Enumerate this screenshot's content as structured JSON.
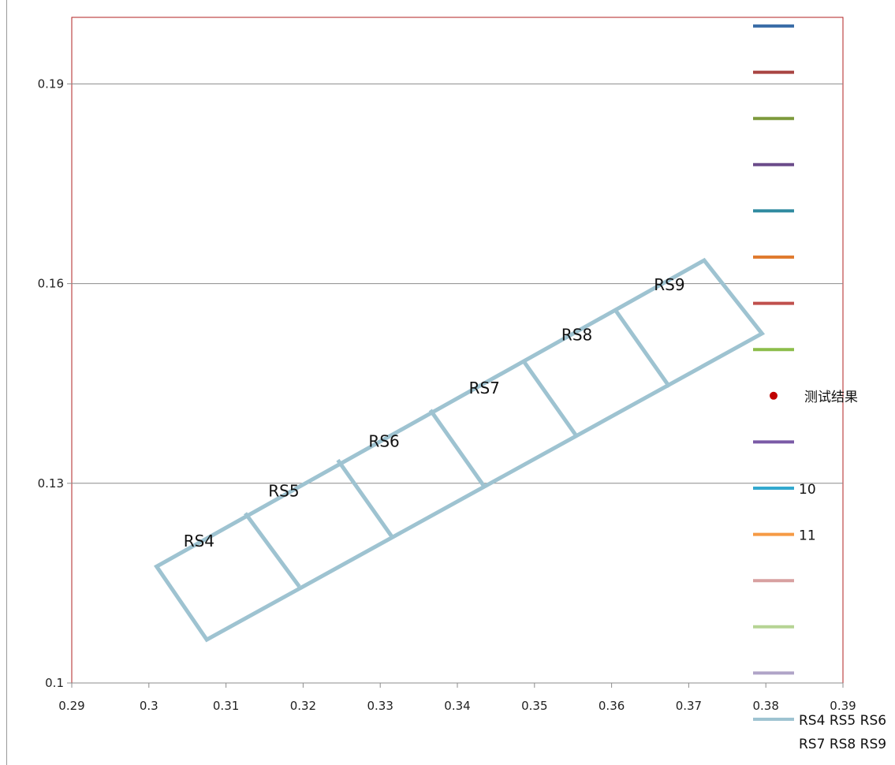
{
  "chart_data": {
    "type": "scatter",
    "xlim": [
      0.29,
      0.39
    ],
    "ylim": [
      0.1,
      0.2
    ],
    "x_ticks": [
      "0.29",
      "0.3",
      "0.31",
      "0.32",
      "0.33",
      "0.34",
      "0.35",
      "0.36",
      "0.37",
      "0.38",
      "0.39"
    ],
    "y_ticks": [
      "0.1",
      "0.13",
      "0.16",
      "0.19"
    ],
    "grid": "horizontal",
    "legend_position": "right",
    "outline": {
      "color": "#9ec3d1",
      "corners": [
        {
          "x": 0.301,
          "y": 0.1175
        },
        {
          "x": 0.372,
          "y": 0.1635
        },
        {
          "x": 0.3795,
          "y": 0.1525
        },
        {
          "x": 0.3075,
          "y": 0.1065
        }
      ],
      "dividers": [
        {
          "top": {
            "x": 0.3125,
            "y": 0.1255
          },
          "bottom": {
            "x": 0.3195,
            "y": 0.1145
          }
        },
        {
          "top": {
            "x": 0.3245,
            "y": 0.1335
          },
          "bottom": {
            "x": 0.3315,
            "y": 0.122
          }
        },
        {
          "top": {
            "x": 0.3365,
            "y": 0.141
          },
          "bottom": {
            "x": 0.3435,
            "y": 0.1295
          }
        },
        {
          "top": {
            "x": 0.3485,
            "y": 0.1485
          },
          "bottom": {
            "x": 0.3555,
            "y": 0.137
          }
        },
        {
          "top": {
            "x": 0.3605,
            "y": 0.156
          },
          "bottom": {
            "x": 0.3675,
            "y": 0.1445
          }
        }
      ]
    },
    "boxes": [
      {
        "label": "RS4",
        "x": 0.3065,
        "y": 0.1205
      },
      {
        "label": "RS5",
        "x": 0.3175,
        "y": 0.128
      },
      {
        "label": "RS6",
        "x": 0.3305,
        "y": 0.1355
      },
      {
        "label": "RS7",
        "x": 0.3435,
        "y": 0.1435
      },
      {
        "label": "RS8",
        "x": 0.3555,
        "y": 0.1515
      },
      {
        "label": "RS9",
        "x": 0.3675,
        "y": 0.159
      }
    ],
    "series": [
      {
        "name": "",
        "color": "#3c6ea8",
        "kind": "line"
      },
      {
        "name": "",
        "color": "#a94442",
        "kind": "line"
      },
      {
        "name": "",
        "color": "#7d9a3c",
        "kind": "line"
      },
      {
        "name": "",
        "color": "#6b4c8a",
        "kind": "line"
      },
      {
        "name": "",
        "color": "#2f8aa0",
        "kind": "line"
      },
      {
        "name": "",
        "color": "#e07b30",
        "kind": "line"
      },
      {
        "name": "",
        "color": "#c0504d",
        "kind": "line"
      },
      {
        "name": "",
        "color": "#8cbd4a",
        "kind": "line"
      },
      {
        "name": "测试结果",
        "color": "#c00000",
        "kind": "point"
      },
      {
        "name": "",
        "color": "#7a5aa6",
        "kind": "line"
      },
      {
        "name": "10",
        "color": "#33a9cf",
        "kind": "line"
      },
      {
        "name": "11",
        "color": "#f59a45",
        "kind": "line"
      },
      {
        "name": "",
        "color": "#d8a0a0",
        "kind": "line"
      },
      {
        "name": "",
        "color": "#b6d494",
        "kind": "line"
      },
      {
        "name": "",
        "color": "#b0a4c8",
        "kind": "line"
      },
      {
        "name": "RS4 RS5 RS6 RS7 RS8 RS9",
        "label_lines": [
          "RS4 RS5 RS6",
          "RS7 RS8 RS9"
        ],
        "color": "#9ec3d1",
        "kind": "line"
      }
    ]
  }
}
